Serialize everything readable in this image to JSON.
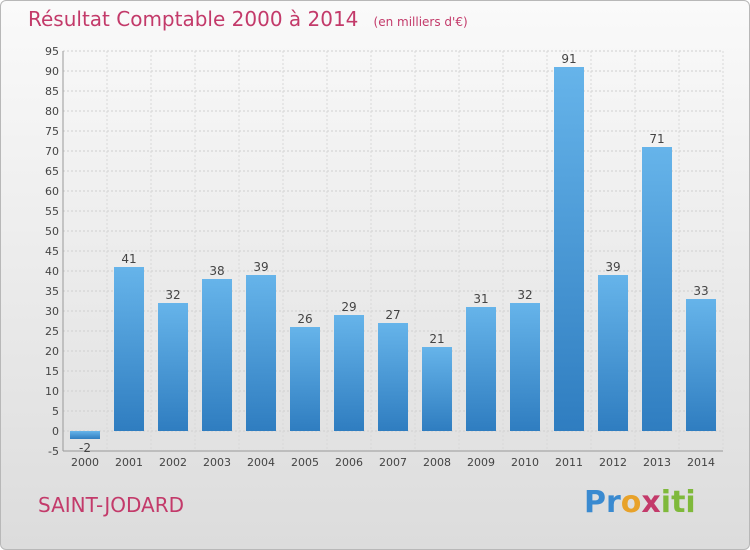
{
  "header": {
    "title": "Résultat Comptable 2000 à 2014",
    "subtitle": "(en milliers d'€)"
  },
  "footer": {
    "place": "SAINT-JODARD",
    "logo": "Proxiti"
  },
  "colors": {
    "title": "#c33a6a",
    "bar_light": "#66b4ea",
    "bar_dark": "#2f7dc0"
  },
  "chart_data": {
    "type": "bar",
    "title": "Résultat Comptable 2000 à 2014",
    "subtitle": "(en milliers d'€)",
    "xlabel": "",
    "ylabel": "",
    "categories": [
      "2000",
      "2001",
      "2002",
      "2003",
      "2004",
      "2005",
      "2006",
      "2007",
      "2008",
      "2009",
      "2010",
      "2011",
      "2012",
      "2013",
      "2014"
    ],
    "values": [
      -2,
      41,
      32,
      38,
      39,
      26,
      29,
      27,
      21,
      31,
      32,
      91,
      39,
      71,
      33
    ],
    "ylim": [
      -5,
      95
    ],
    "yticks": [
      -5,
      0,
      5,
      10,
      15,
      20,
      25,
      30,
      35,
      40,
      45,
      50,
      55,
      60,
      65,
      70,
      75,
      80,
      85,
      90,
      95
    ],
    "grid": true,
    "legend": "none"
  }
}
